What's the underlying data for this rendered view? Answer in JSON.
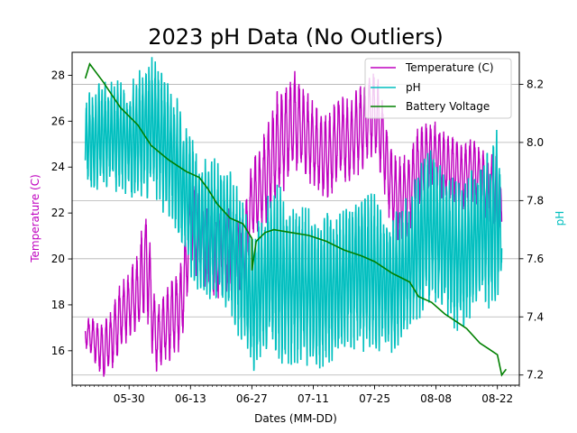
{
  "chart_data": {
    "type": "line",
    "title": "2023 pH Data (No Outliers)",
    "xlabel": "Dates (MM-DD)",
    "ylabel_left": "Temperature (C)",
    "ylabel_right": "pH",
    "x_start": "2023-05-20",
    "x_range": [
      "2023-05-17",
      "2023-08-27"
    ],
    "x_tick_labels": [
      "05-30",
      "06-13",
      "06-27",
      "07-11",
      "07-25",
      "08-08",
      "08-22"
    ],
    "x_tick_dates": [
      "2023-05-30",
      "2023-06-13",
      "2023-06-27",
      "2023-07-11",
      "2023-07-25",
      "2023-08-08",
      "2023-08-22"
    ],
    "y_left_range": [
      14.5,
      29.0
    ],
    "y_left_ticks": [
      16,
      18,
      20,
      22,
      24,
      26,
      28
    ],
    "y_right_range": [
      7.165,
      8.31
    ],
    "y_right_ticks": [
      7.2,
      7.4,
      7.6,
      7.8,
      8.0,
      8.2
    ],
    "grid": "horizontal lines on pH axis",
    "legend_position": "top-right",
    "series": [
      {
        "name": "Temperature (C)",
        "axis": "left",
        "color": "#bf00bf",
        "dates": [
          "2023-05-20",
          "2023-05-22",
          "2023-05-24",
          "2023-05-26",
          "2023-05-28",
          "2023-05-30",
          "2023-06-01",
          "2023-06-03",
          "2023-06-05",
          "2023-06-07",
          "2023-06-09",
          "2023-06-11",
          "2023-06-13",
          "2023-06-15",
          "2023-06-17",
          "2023-06-19",
          "2023-06-21",
          "2023-06-23",
          "2023-06-25",
          "2023-06-27",
          "2023-06-29",
          "2023-07-01",
          "2023-07-03",
          "2023-07-05",
          "2023-07-07",
          "2023-07-09",
          "2023-07-11",
          "2023-07-13",
          "2023-07-15",
          "2023-07-17",
          "2023-07-19",
          "2023-07-21",
          "2023-07-23",
          "2023-07-25",
          "2023-07-27",
          "2023-07-29",
          "2023-07-31",
          "2023-08-02",
          "2023-08-04",
          "2023-08-06",
          "2023-08-08",
          "2023-08-10",
          "2023-08-12",
          "2023-08-14",
          "2023-08-16",
          "2023-08-18",
          "2023-08-20",
          "2023-08-22",
          "2023-08-23"
        ],
        "mid": [
          16.8,
          16.5,
          16.0,
          16.5,
          17.5,
          18.0,
          18.5,
          20.0,
          16.5,
          17.0,
          17.5,
          18.0,
          21.5,
          21.0,
          20.5,
          20.0,
          20.5,
          20.5,
          20.0,
          22.5,
          23.0,
          24.0,
          25.0,
          25.5,
          26.0,
          25.5,
          25.0,
          24.5,
          24.5,
          25.5,
          25.0,
          25.5,
          26.0,
          26.5,
          25.0,
          23.0,
          22.5,
          23.0,
          24.0,
          24.5,
          24.5,
          24.0,
          24.0,
          23.5,
          24.0,
          23.5,
          23.0,
          23.0,
          21.5
        ],
        "amp": [
          0.5,
          0.8,
          1.0,
          1.2,
          1.2,
          1.2,
          1.5,
          2.0,
          1.2,
          1.2,
          1.5,
          1.5,
          1.5,
          1.5,
          1.5,
          1.5,
          1.5,
          1.5,
          1.5,
          1.5,
          1.5,
          1.8,
          2.0,
          1.8,
          1.8,
          1.5,
          1.5,
          1.5,
          1.5,
          1.5,
          1.5,
          1.5,
          1.5,
          1.5,
          1.5,
          1.5,
          1.5,
          1.5,
          1.5,
          1.2,
          1.2,
          1.2,
          1.2,
          1.2,
          1.2,
          1.2,
          1.2,
          1.5,
          1.0
        ],
        "cycles_per_day": 1
      },
      {
        "name": "pH",
        "axis": "right",
        "color": "#00bfbf",
        "dates": [
          "2023-05-20",
          "2023-05-22",
          "2023-05-24",
          "2023-05-26",
          "2023-05-28",
          "2023-05-30",
          "2023-06-01",
          "2023-06-03",
          "2023-06-05",
          "2023-06-07",
          "2023-06-09",
          "2023-06-11",
          "2023-06-13",
          "2023-06-15",
          "2023-06-17",
          "2023-06-19",
          "2023-06-21",
          "2023-06-23",
          "2023-06-25",
          "2023-06-27",
          "2023-06-29",
          "2023-07-01",
          "2023-07-03",
          "2023-07-05",
          "2023-07-07",
          "2023-07-09",
          "2023-07-11",
          "2023-07-13",
          "2023-07-15",
          "2023-07-17",
          "2023-07-19",
          "2023-07-21",
          "2023-07-23",
          "2023-07-25",
          "2023-07-27",
          "2023-07-29",
          "2023-07-31",
          "2023-08-02",
          "2023-08-04",
          "2023-08-06",
          "2023-08-08",
          "2023-08-10",
          "2023-08-12",
          "2023-08-14",
          "2023-08-16",
          "2023-08-18",
          "2023-08-20",
          "2023-08-22",
          "2023-08-23"
        ],
        "mid": [
          8.0,
          8.0,
          8.03,
          8.02,
          8.02,
          8.0,
          8.02,
          8.05,
          8.05,
          8.0,
          7.95,
          7.85,
          7.8,
          7.72,
          7.68,
          7.7,
          7.68,
          7.62,
          7.55,
          7.45,
          7.5,
          7.55,
          7.55,
          7.52,
          7.5,
          7.5,
          7.5,
          7.48,
          7.5,
          7.5,
          7.55,
          7.55,
          7.55,
          7.55,
          7.52,
          7.5,
          7.55,
          7.58,
          7.65,
          7.72,
          7.7,
          7.65,
          7.62,
          7.6,
          7.65,
          7.7,
          7.7,
          7.75,
          7.7
        ],
        "amp": [
          0.12,
          0.15,
          0.15,
          0.15,
          0.15,
          0.15,
          0.18,
          0.2,
          0.2,
          0.2,
          0.2,
          0.2,
          0.2,
          0.2,
          0.2,
          0.2,
          0.2,
          0.2,
          0.2,
          0.2,
          0.2,
          0.22,
          0.25,
          0.22,
          0.22,
          0.22,
          0.22,
          0.22,
          0.22,
          0.2,
          0.2,
          0.22,
          0.22,
          0.22,
          0.2,
          0.2,
          0.2,
          0.2,
          0.22,
          0.22,
          0.22,
          0.2,
          0.2,
          0.2,
          0.2,
          0.2,
          0.22,
          0.25,
          0.15
        ],
        "cycles_per_day": 1.4
      },
      {
        "name": "Battery Voltage",
        "axis": "right",
        "color": "#008000",
        "dates": [
          "2023-05-20",
          "2023-05-21",
          "2023-05-24",
          "2023-05-28",
          "2023-06-01",
          "2023-06-04",
          "2023-06-08",
          "2023-06-12",
          "2023-06-15",
          "2023-06-17",
          "2023-06-19",
          "2023-06-22",
          "2023-06-25",
          "2023-06-27",
          "2023-06-27",
          "2023-06-28",
          "2023-06-30",
          "2023-07-02",
          "2023-07-06",
          "2023-07-10",
          "2023-07-14",
          "2023-07-18",
          "2023-07-22",
          "2023-07-25",
          "2023-07-29",
          "2023-08-02",
          "2023-08-04",
          "2023-08-07",
          "2023-08-10",
          "2023-08-13",
          "2023-08-15",
          "2023-08-18",
          "2023-08-20",
          "2023-08-22",
          "2023-08-23",
          "2023-08-24"
        ],
        "values": [
          8.22,
          8.27,
          8.21,
          8.12,
          8.06,
          7.99,
          7.94,
          7.9,
          7.88,
          7.84,
          7.79,
          7.74,
          7.72,
          7.67,
          7.56,
          7.66,
          7.69,
          7.7,
          7.69,
          7.68,
          7.66,
          7.63,
          7.61,
          7.59,
          7.55,
          7.52,
          7.47,
          7.45,
          7.41,
          7.38,
          7.36,
          7.31,
          7.29,
          7.27,
          7.2,
          7.22
        ]
      }
    ]
  }
}
